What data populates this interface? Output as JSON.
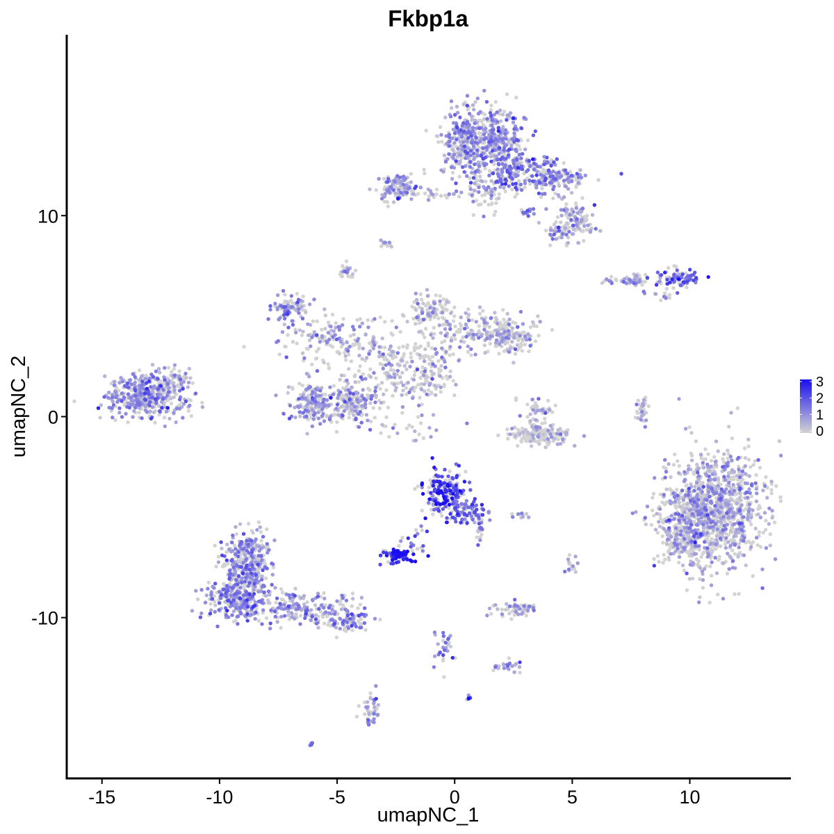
{
  "chart_data": {
    "type": "scatter",
    "title": "Fkbp1a",
    "xlabel": "umapNC_1",
    "ylabel": "umapNC_2",
    "xlim": [
      -16.5,
      14.3
    ],
    "ylim": [
      -18.0,
      19.0
    ],
    "x_ticks": [
      -15,
      -10,
      -5,
      0,
      5,
      10
    ],
    "x_tick_labels": [
      "-15",
      "-10",
      "-5",
      "0",
      "5",
      "10"
    ],
    "y_ticks": [
      -10,
      0,
      10
    ],
    "y_tick_labels": [
      "-10",
      "0",
      "10"
    ],
    "grid": false,
    "legend": {
      "placement": "right",
      "type": "colorbar",
      "range": [
        0,
        3
      ],
      "tick_values": [
        0,
        1,
        2,
        3
      ],
      "tick_labels": [
        "0",
        "1",
        "2",
        "3"
      ],
      "low_color": "#d3d3d3",
      "high_color": "#1a0ff0"
    },
    "point_color_low": "#d3d3d3",
    "point_color_high": "#1a0ff0",
    "clusters": [
      {
        "cx": -13.1,
        "cy": 1.1,
        "sx": 0.85,
        "sy": 0.55,
        "n": 420,
        "expr": 0.9
      },
      {
        "cx": -11.8,
        "cy": 1.9,
        "sx": 0.35,
        "sy": 0.35,
        "n": 40,
        "expr": 0.4
      },
      {
        "cx": -8.8,
        "cy": -7.3,
        "sx": 0.55,
        "sy": 0.9,
        "n": 330,
        "expr": 1.0
      },
      {
        "cx": -9.3,
        "cy": -9.1,
        "sx": 0.7,
        "sy": 0.5,
        "n": 260,
        "expr": 1.0
      },
      {
        "cx": -6.3,
        "cy": -9.6,
        "sx": 1.3,
        "sy": 0.45,
        "n": 200,
        "expr": 0.9
      },
      {
        "cx": -4.5,
        "cy": -10.2,
        "sx": 0.4,
        "sy": 0.25,
        "n": 60,
        "expr": 1.2
      },
      {
        "cx": -6.0,
        "cy": 0.8,
        "sx": 0.5,
        "sy": 0.55,
        "n": 160,
        "expr": 0.8
      },
      {
        "cx": -4.3,
        "cy": 0.7,
        "sx": 0.55,
        "sy": 0.55,
        "n": 180,
        "expr": 0.6
      },
      {
        "cx": -7.0,
        "cy": 5.4,
        "sx": 0.4,
        "sy": 0.35,
        "n": 90,
        "expr": 0.8
      },
      {
        "cx": -5.2,
        "cy": 3.8,
        "sx": 1.1,
        "sy": 0.7,
        "n": 150,
        "expr": 0.6
      },
      {
        "cx": -2.5,
        "cy": 2.6,
        "sx": 1.0,
        "sy": 0.9,
        "n": 160,
        "expr": 0.4
      },
      {
        "cx": -1.0,
        "cy": 5.3,
        "sx": 0.5,
        "sy": 0.5,
        "n": 90,
        "expr": 0.3
      },
      {
        "cx": 1.0,
        "cy": 4.2,
        "sx": 1.2,
        "sy": 0.5,
        "n": 150,
        "expr": 0.5
      },
      {
        "cx": 2.4,
        "cy": 4.0,
        "sx": 0.5,
        "sy": 0.45,
        "n": 120,
        "expr": 0.3
      },
      {
        "cx": -0.7,
        "cy": 2.1,
        "sx": 0.45,
        "sy": 0.55,
        "n": 50,
        "expr": 0.3
      },
      {
        "cx": -1.8,
        "cy": 1.4,
        "sx": 0.7,
        "sy": 0.25,
        "n": 40,
        "expr": 0.5
      },
      {
        "cx": -4.6,
        "cy": 7.2,
        "sx": 0.15,
        "sy": 0.2,
        "n": 25,
        "expr": 0.7
      },
      {
        "cx": -2.9,
        "cy": 8.6,
        "sx": 0.15,
        "sy": 0.1,
        "n": 12,
        "expr": 0.5
      },
      {
        "cx": 3.6,
        "cy": -0.9,
        "sx": 0.7,
        "sy": 0.25,
        "n": 140,
        "expr": 0.1
      },
      {
        "cx": 3.5,
        "cy": 0.2,
        "sx": 0.35,
        "sy": 0.45,
        "n": 50,
        "expr": 0.2
      },
      {
        "cx": 8.0,
        "cy": 0.4,
        "sx": 0.12,
        "sy": 0.4,
        "n": 30,
        "expr": 0.5
      },
      {
        "cx": 11.0,
        "cy": -4.6,
        "sx": 1.05,
        "sy": 1.45,
        "n": 1050,
        "expr": 0.55
      },
      {
        "cx": 9.7,
        "cy": -6.0,
        "sx": 0.55,
        "sy": 0.8,
        "n": 160,
        "expr": 0.45
      },
      {
        "cx": -0.4,
        "cy": -3.8,
        "sx": 0.45,
        "sy": 0.55,
        "n": 190,
        "expr": 2.1
      },
      {
        "cx": 0.5,
        "cy": -4.8,
        "sx": 0.45,
        "sy": 0.3,
        "n": 80,
        "expr": 1.5
      },
      {
        "cx": 1.1,
        "cy": -5.8,
        "sx": 0.12,
        "sy": 0.3,
        "n": 15,
        "expr": 1.3
      },
      {
        "cx": -2.5,
        "cy": -6.9,
        "sx": 0.35,
        "sy": 0.18,
        "n": 70,
        "expr": 2.7
      },
      {
        "cx": -1.5,
        "cy": -6.0,
        "sx": 0.3,
        "sy": 0.45,
        "n": 20,
        "expr": 1.9
      },
      {
        "cx": 0.5,
        "cy": 13.7,
        "sx": 0.55,
        "sy": 0.9,
        "n": 300,
        "expr": 0.8
      },
      {
        "cx": 1.8,
        "cy": 13.9,
        "sx": 0.6,
        "sy": 0.7,
        "n": 260,
        "expr": 0.9
      },
      {
        "cx": 2.4,
        "cy": 12.3,
        "sx": 0.6,
        "sy": 0.55,
        "n": 160,
        "expr": 1.3
      },
      {
        "cx": 4.2,
        "cy": 11.9,
        "sx": 0.75,
        "sy": 0.4,
        "n": 150,
        "expr": 1.1
      },
      {
        "cx": 5.2,
        "cy": 9.8,
        "sx": 0.45,
        "sy": 0.4,
        "n": 90,
        "expr": 0.6
      },
      {
        "cx": 4.5,
        "cy": 9.2,
        "sx": 0.4,
        "sy": 0.35,
        "n": 50,
        "expr": 0.6
      },
      {
        "cx": 1.3,
        "cy": 11.2,
        "sx": 0.45,
        "sy": 0.5,
        "n": 60,
        "expr": 0.5
      },
      {
        "cx": -2.4,
        "cy": 11.4,
        "sx": 0.45,
        "sy": 0.35,
        "n": 100,
        "expr": 0.8
      },
      {
        "cx": -1.0,
        "cy": 11.1,
        "sx": 0.8,
        "sy": 0.15,
        "n": 30,
        "expr": 0.3
      },
      {
        "cx": 3.1,
        "cy": 10.2,
        "sx": 0.15,
        "sy": 0.15,
        "n": 12,
        "expr": 1.1
      },
      {
        "cx": 7.5,
        "cy": 6.8,
        "sx": 0.55,
        "sy": 0.15,
        "n": 60,
        "expr": 0.8
      },
      {
        "cx": 9.5,
        "cy": 6.9,
        "sx": 0.45,
        "sy": 0.22,
        "n": 80,
        "expr": 1.6
      },
      {
        "cx": 8.8,
        "cy": 6.2,
        "sx": 0.3,
        "sy": 0.3,
        "n": 15,
        "expr": 0.8
      },
      {
        "cx": 2.5,
        "cy": -9.6,
        "sx": 0.45,
        "sy": 0.22,
        "n": 60,
        "expr": 0.5
      },
      {
        "cx": 2.2,
        "cy": -12.4,
        "sx": 0.35,
        "sy": 0.18,
        "n": 25,
        "expr": 0.7
      },
      {
        "cx": -3.6,
        "cy": -14.6,
        "sx": 0.18,
        "sy": 0.5,
        "n": 40,
        "expr": 0.9
      },
      {
        "cx": -0.4,
        "cy": -11.5,
        "sx": 0.25,
        "sy": 0.5,
        "n": 30,
        "expr": 1.1
      },
      {
        "cx": 5.0,
        "cy": -7.5,
        "sx": 0.15,
        "sy": 0.25,
        "n": 15,
        "expr": 0.9
      },
      {
        "cx": 2.8,
        "cy": -5.0,
        "sx": 0.25,
        "sy": 0.1,
        "n": 10,
        "expr": 1.0
      },
      {
        "cx": 0.6,
        "cy": -14.0,
        "sx": 0.08,
        "sy": 0.1,
        "n": 6,
        "expr": 2.0
      },
      {
        "cx": -6.1,
        "cy": -16.3,
        "sx": 0.1,
        "sy": 0.05,
        "n": 5,
        "expr": 1.1
      },
      {
        "cx": -2.0,
        "cy": -0.8,
        "sx": 0.9,
        "sy": 0.5,
        "n": 25,
        "expr": 0.6
      }
    ]
  }
}
